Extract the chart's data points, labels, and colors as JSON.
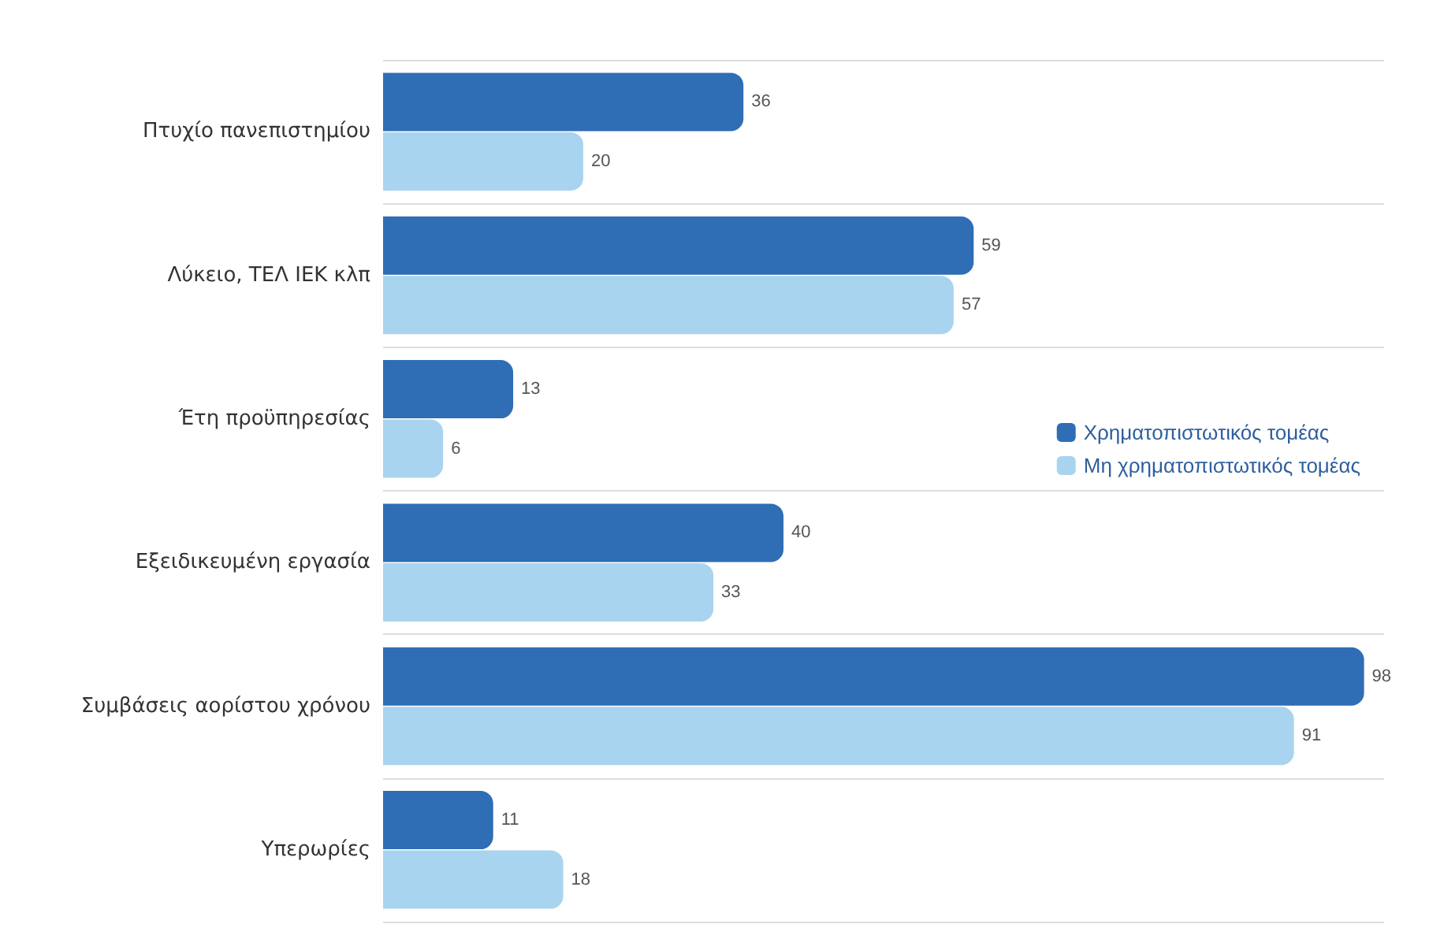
{
  "chart_data": {
    "type": "bar",
    "orientation": "horizontal",
    "categories": [
      "Πτυχίο πανεπιστημίου",
      "Λύκειο, ΤΕΛ ΙΕΚ κλπ",
      "Έτη προϋπηρεσίας",
      "Εξειδικευμένη εργασία",
      "Συμβάσεις αορίστου χρόνου",
      "Υπερωρίες"
    ],
    "series": [
      {
        "name": "Χρηματοπιστωτικός τομέας",
        "color": "#2f6db5",
        "values": [
          36,
          59,
          13,
          40,
          98,
          11
        ]
      },
      {
        "name": "Μη χρηματοπιστωτικός τομέας",
        "color": "#a9d4ef",
        "values": [
          20,
          57,
          6,
          33,
          91,
          18
        ]
      }
    ],
    "data_labels": true,
    "legend": "right",
    "grid": "y"
  }
}
